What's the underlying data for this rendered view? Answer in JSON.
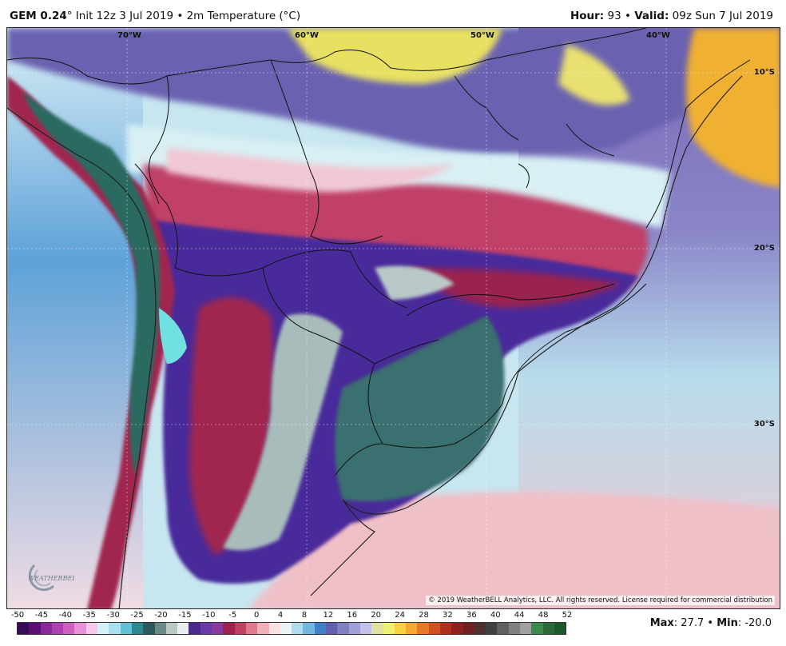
{
  "header": {
    "model": "GEM 0.24",
    "init_text": "° Init 12z 3 Jul 2019 • 2m Temperature (°C)",
    "hour_label": "Hour:",
    "hour_value": " 93 • ",
    "valid_label": "Valid:",
    "valid_value": " 09z Sun 7 Jul 2019"
  },
  "map": {
    "lon_labels": [
      "70°W",
      "60°W",
      "50°W",
      "40°W"
    ],
    "lat_labels": [
      "10°S",
      "20°S",
      "30°S"
    ],
    "copyright": "© 2019 WeatherBELL Analytics, LLC. All rights reserved. License required for commercial distribution",
    "logo_text": "WEATHERBELL"
  },
  "colorbar": {
    "ticks": [
      "-50",
      "-45",
      "-40",
      "-35",
      "-30",
      "-25",
      "-20",
      "-15",
      "-10",
      "-5",
      "0",
      "4",
      "8",
      "12",
      "16",
      "20",
      "24",
      "28",
      "32",
      "36",
      "40",
      "44",
      "48",
      "52"
    ],
    "colors": [
      "#3a0a5a",
      "#5a1075",
      "#8a2a9a",
      "#b040b0",
      "#d060c0",
      "#e890d8",
      "#f5c8ec",
      "#d8f0f8",
      "#a8e0f0",
      "#60c0d8",
      "#2e8890",
      "#2a5a5a",
      "#6a8a88",
      "#b8c8c4",
      "#e8eef0",
      "#4a2a8a",
      "#6a3aa8",
      "#8a3a9a",
      "#a02050",
      "#c04060",
      "#e07a8a",
      "#f0b0b8",
      "#fae0e0",
      "#e8f4f8",
      "#b0dcf0",
      "#70b8e0",
      "#4080c8",
      "#6060b0",
      "#8080c0",
      "#a0a0d8",
      "#c0c0e8",
      "#e0e0a0",
      "#f0f070",
      "#f8d040",
      "#f8a830",
      "#e87828",
      "#d05020",
      "#b03020",
      "#902020",
      "#702020",
      "#503030",
      "#404040",
      "#606060",
      "#808080",
      "#a0a0a0",
      "#3a8a4a",
      "#2a6a3a",
      "#1a5a2a"
    ]
  },
  "stats": {
    "max_label": "Max",
    "max_value": ": 27.7 • ",
    "min_label": "Min",
    "min_value": ": -20.0"
  }
}
